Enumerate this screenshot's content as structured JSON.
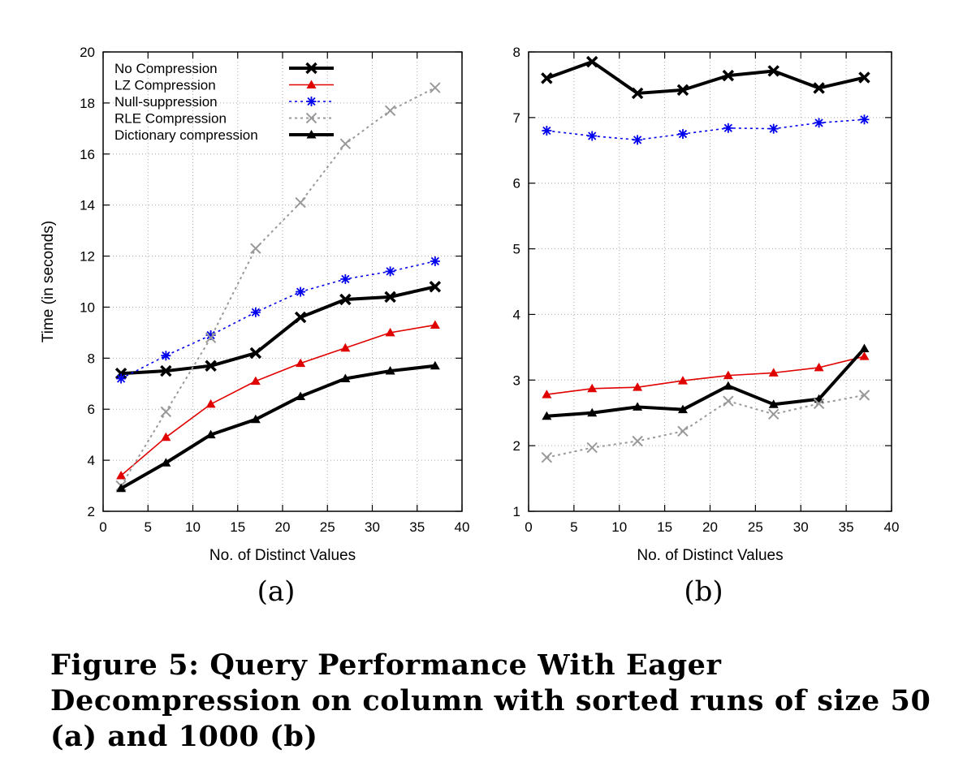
{
  "caption": "Figure 5: Query Performance With Eager Decompression on column with sorted runs of size 50 (a) and 1000 (b)",
  "colors": {
    "black": "#000000",
    "red": "#e00000",
    "blue": "#0000ee",
    "grey": "#999999"
  },
  "chart_data": [
    {
      "type": "line",
      "sublabel": "(a)",
      "xlabel": "No. of Distinct Values",
      "ylabel": "Time (in seconds)",
      "xlim": [
        0,
        40
      ],
      "ylim": [
        2,
        20
      ],
      "xticks": [
        0,
        5,
        10,
        15,
        20,
        25,
        30,
        35,
        40
      ],
      "yticks": [
        2,
        4,
        6,
        8,
        10,
        12,
        14,
        16,
        18,
        20
      ],
      "grid": true,
      "legend": "top-left",
      "x": [
        2,
        7,
        12,
        17,
        22,
        27,
        32,
        37
      ],
      "series": [
        {
          "name": "No Compression",
          "values": [
            7.4,
            7.5,
            7.7,
            8.2,
            9.6,
            10.3,
            10.4,
            10.8
          ],
          "color": "#000000",
          "dash": "",
          "width": 4,
          "marker": "x-thick"
        },
        {
          "name": "LZ Compression",
          "values": [
            3.4,
            4.9,
            6.2,
            7.1,
            7.8,
            8.4,
            9.0,
            9.3
          ],
          "color": "#e00000",
          "dash": "",
          "width": 1.6,
          "marker": "triangle"
        },
        {
          "name": "Null-suppression",
          "values": [
            7.2,
            8.1,
            8.9,
            9.8,
            10.6,
            11.1,
            11.4,
            11.8
          ],
          "color": "#0000ee",
          "dash": "3,4",
          "width": 1.6,
          "marker": "star"
        },
        {
          "name": "RLE Compression",
          "values": [
            3.0,
            5.9,
            8.8,
            12.3,
            14.1,
            16.4,
            17.7,
            18.6
          ],
          "color": "#999999",
          "dash": "3,4",
          "width": 2,
          "marker": "x"
        },
        {
          "name": "Dictionary compression",
          "values": [
            2.9,
            3.9,
            5.0,
            5.6,
            6.5,
            7.2,
            7.5,
            7.7
          ],
          "color": "#000000",
          "dash": "",
          "width": 4,
          "marker": "triangle"
        }
      ]
    },
    {
      "type": "line",
      "sublabel": "(b)",
      "xlabel": "No. of Distinct Values",
      "ylabel": "",
      "xlim": [
        0,
        40
      ],
      "ylim": [
        1,
        8
      ],
      "xticks": [
        0,
        5,
        10,
        15,
        20,
        25,
        30,
        35,
        40
      ],
      "yticks": [
        1,
        2,
        3,
        4,
        5,
        6,
        7,
        8
      ],
      "grid": true,
      "legend": "none",
      "x": [
        2,
        7,
        12,
        17,
        22,
        27,
        32,
        37
      ],
      "series": [
        {
          "values": [
            7.6,
            7.85,
            7.37,
            7.42,
            7.64,
            7.71,
            7.45,
            7.61
          ],
          "color": "#000000",
          "dash": "",
          "width": 4,
          "marker": "x-thick"
        },
        {
          "values": [
            6.8,
            6.72,
            6.66,
            6.75,
            6.84,
            6.83,
            6.92,
            6.97
          ],
          "color": "#0000ee",
          "dash": "3,4",
          "width": 1.6,
          "marker": "star"
        },
        {
          "values": [
            2.78,
            2.87,
            2.89,
            2.99,
            3.07,
            3.11,
            3.19,
            3.36
          ],
          "color": "#e00000",
          "dash": "",
          "width": 1.6,
          "marker": "triangle"
        },
        {
          "values": [
            2.45,
            2.5,
            2.59,
            2.55,
            2.91,
            2.63,
            2.71,
            3.48
          ],
          "color": "#000000",
          "dash": "",
          "width": 4,
          "marker": "triangle"
        },
        {
          "values": [
            1.82,
            1.97,
            2.07,
            2.22,
            2.68,
            2.48,
            2.64,
            2.77
          ],
          "color": "#999999",
          "dash": "3,4",
          "width": 2,
          "marker": "x"
        }
      ]
    }
  ]
}
